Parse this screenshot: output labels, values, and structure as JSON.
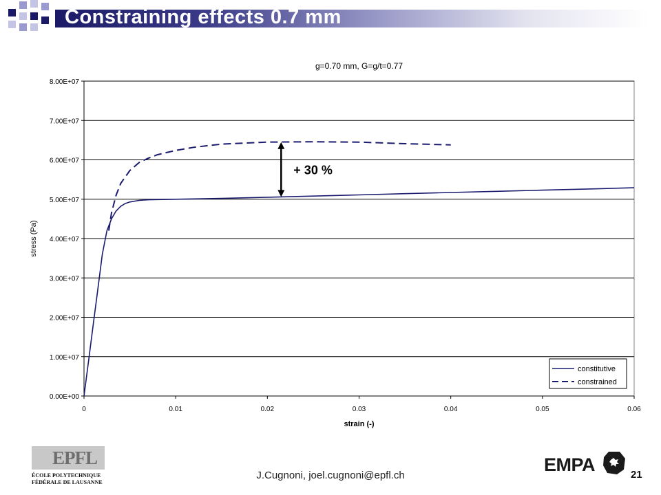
{
  "slide": {
    "title": "Constraining effects 0.7 mm",
    "footer": "J.Cugnoni, joel.cugnoni@epfl.ch",
    "page_number": "21"
  },
  "logos": {
    "epfl_mark": "EPFL",
    "epfl_line1": "ÉCOLE POLYTECHNIQUE",
    "epfl_line2": "FÉDÉRALE DE LAUSANNE",
    "empa": "EMPA"
  },
  "colors": {
    "series": "#1a1a6e",
    "arrow": "#000000",
    "grid": "#000000"
  },
  "chart_data": {
    "type": "line",
    "title": "g=0.70 mm, G=g/t=0.77",
    "xlabel": "strain (-)",
    "ylabel": "stress (Pa)",
    "xlim": [
      0,
      0.06
    ],
    "ylim": [
      0,
      80000000
    ],
    "x_ticks": [
      0,
      0.01,
      0.02,
      0.03,
      0.04,
      0.05,
      0.06
    ],
    "x_tick_labels": [
      "0",
      "0.01",
      "0.02",
      "0.03",
      "0.04",
      "0.05",
      "0.06"
    ],
    "y_ticks": [
      0,
      10000000,
      20000000,
      30000000,
      40000000,
      50000000,
      60000000,
      70000000,
      80000000
    ],
    "y_tick_labels": [
      "0.00E+00",
      "1.00E+07",
      "2.00E+07",
      "3.00E+07",
      "4.00E+07",
      "5.00E+07",
      "6.00E+07",
      "7.00E+07",
      "8.00E+07"
    ],
    "grid": "horizontal",
    "legend_position": "bottom-right",
    "series": [
      {
        "name": "constitutive",
        "style": "solid",
        "x": [
          0,
          0.0005,
          0.001,
          0.0015,
          0.002,
          0.0025,
          0.003,
          0.0035,
          0.004,
          0.0045,
          0.005,
          0.006,
          0.007,
          0.008,
          0.01,
          0.015,
          0.02,
          0.025,
          0.03,
          0.035,
          0.04,
          0.045,
          0.05,
          0.055,
          0.06
        ],
        "y": [
          0,
          9000000,
          18000000,
          27000000,
          36000000,
          42000000,
          45000000,
          47000000,
          48200000,
          48900000,
          49300000,
          49700000,
          49850000,
          49900000,
          50000000,
          50200000,
          50500000,
          50800000,
          51100000,
          51400000,
          51700000,
          52000000,
          52300000,
          52600000,
          52900000
        ]
      },
      {
        "name": "constrained",
        "style": "dashed",
        "x": [
          0.0027,
          0.003,
          0.0035,
          0.004,
          0.005,
          0.006,
          0.007,
          0.008,
          0.01,
          0.012,
          0.015,
          0.02,
          0.025,
          0.03,
          0.035,
          0.04
        ],
        "y": [
          42000000,
          46500000,
          51000000,
          54000000,
          57300000,
          59300000,
          60400000,
          61300000,
          62400000,
          63200000,
          64000000,
          64500000,
          64600000,
          64500000,
          64100000,
          63800000
        ]
      }
    ],
    "annotation": {
      "text": "+ 30 %",
      "x": 0.0215,
      "y_from": 50600000,
      "y_to": 64500000
    }
  }
}
